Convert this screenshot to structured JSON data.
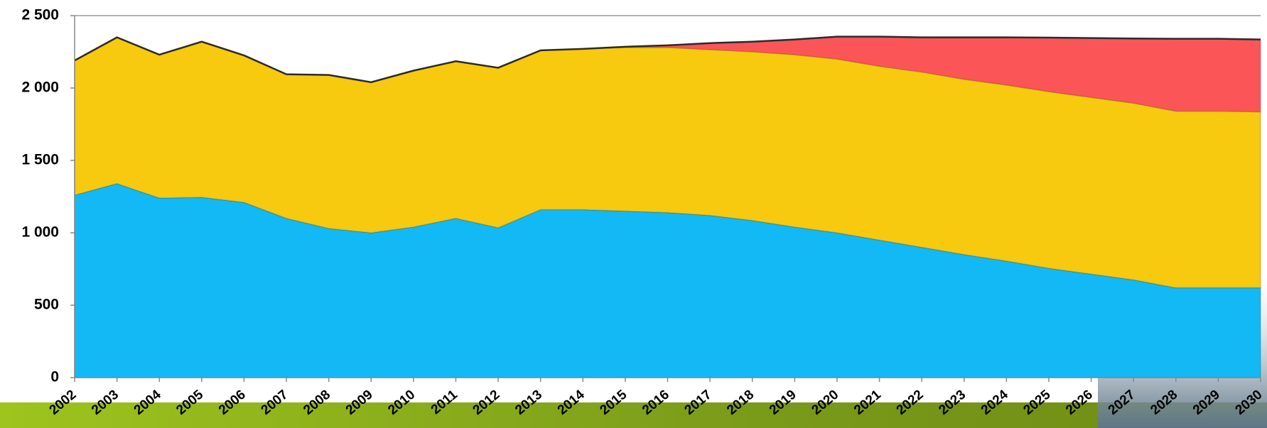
{
  "chart_data": {
    "type": "stacked_area",
    "categories": [
      "2002",
      "2003",
      "2004",
      "2005",
      "2006",
      "2007",
      "2008",
      "2009",
      "2010",
      "2011",
      "2012",
      "2013",
      "2014",
      "2015",
      "2016",
      "2017",
      "2018",
      "2019",
      "2020",
      "2021",
      "2022",
      "2023",
      "2024",
      "2025",
      "2026",
      "2027",
      "2028",
      "2029",
      "2030"
    ],
    "series": [
      {
        "color": "#12b9f5",
        "values": [
          1260,
          1340,
          1240,
          1245,
          1210,
          1100,
          1030,
          1000,
          1040,
          1100,
          1035,
          1160,
          1160,
          1150,
          1140,
          1120,
          1085,
          1040,
          1000,
          950,
          900,
          850,
          805,
          755,
          715,
          675,
          620,
          620,
          620
        ]
      },
      {
        "color": "#f7c90f",
        "values": [
          930,
          1010,
          990,
          1075,
          1015,
          995,
          1060,
          1040,
          1080,
          1085,
          1105,
          1100,
          1110,
          1130,
          1140,
          1145,
          1165,
          1190,
          1200,
          1200,
          1210,
          1210,
          1215,
          1220,
          1220,
          1220,
          1220,
          1220,
          1215
        ]
      },
      {
        "color": "#fb5558",
        "values": [
          0,
          0,
          0,
          0,
          0,
          0,
          0,
          0,
          0,
          0,
          0,
          0,
          0,
          5,
          15,
          45,
          70,
          105,
          155,
          205,
          240,
          290,
          330,
          373,
          410,
          447,
          500,
          500,
          500
        ]
      }
    ],
    "ylim": [
      0,
      2500
    ],
    "yticks": [
      0,
      500,
      {
        "value": 1000,
        "label": "1 000"
      },
      {
        "value": 1500,
        "label": "1 500"
      },
      {
        "value": 2000,
        "label": "2 000"
      },
      {
        "value": 2500,
        "label": "2 500"
      }
    ],
    "grid": false
  }
}
